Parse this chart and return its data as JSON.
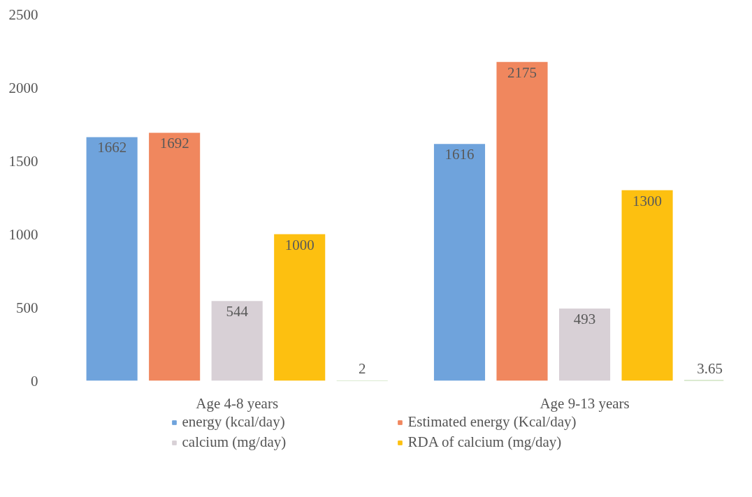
{
  "chart_data": {
    "type": "bar",
    "categories": [
      "Age 4-8 years",
      "Age 9-13 years"
    ],
    "series": [
      {
        "name": "energy (kcal/day)",
        "color": "#6fa3dc",
        "values": [
          1662,
          1616
        ]
      },
      {
        "name": "Estimated energy (Kcal/day)",
        "color": "#f0875e",
        "values": [
          1692,
          2175
        ]
      },
      {
        "name": "calcium (mg/day)",
        "color": "#d8d0d6",
        "values": [
          544,
          493
        ]
      },
      {
        "name": "RDA of calcium (mg/day)",
        "color": "#fdc010",
        "values": [
          1000,
          1300
        ]
      },
      {
        "color": "#70ad47",
        "values": [
          2,
          3.65
        ]
      }
    ],
    "ylim": [
      0,
      2500
    ],
    "yticks": [
      0,
      500,
      1000,
      1500,
      2000,
      2500
    ],
    "grid": false,
    "legend": "bottom",
    "data_labels": true
  }
}
